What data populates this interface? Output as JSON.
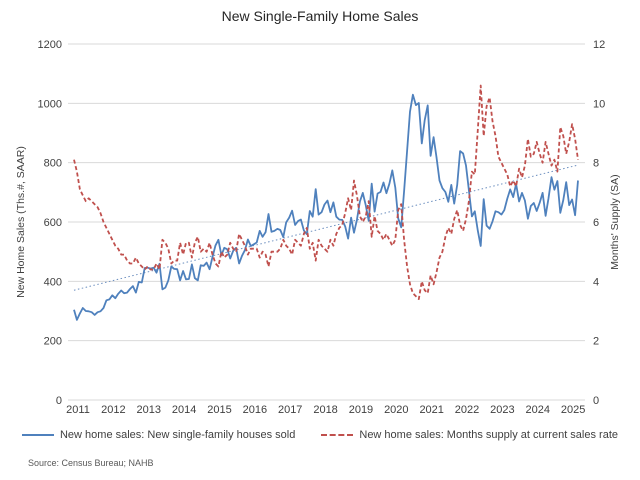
{
  "chart_data": {
    "type": "line",
    "title": "New Single-Family Home Sales",
    "source": "Source: Census Bureau; NAHB",
    "grid": "horizontal",
    "legend_position": "bottom",
    "frequency": "monthly",
    "start_period": "2011-01",
    "x_tick_labels": [
      "2011",
      "2012",
      "2013",
      "2014",
      "2015",
      "2016",
      "2017",
      "2018",
      "2019",
      "2020",
      "2021",
      "2022",
      "2023",
      "2024",
      "2025"
    ],
    "y_left": {
      "label": "New Home Sales (Ths.#, SAAR)",
      "ticks": [
        0,
        200,
        400,
        600,
        800,
        1000,
        1200
      ],
      "lim": [
        0,
        1200
      ]
    },
    "y_right": {
      "label": "Months' Supply (SA)",
      "ticks": [
        0,
        2,
        4,
        6,
        8,
        10,
        12
      ],
      "lim": [
        0,
        12
      ]
    },
    "colors": {
      "sales": "#4f81bd",
      "supply": "#c0504d",
      "gridline": "#d9d9d9",
      "trendline": "#6b8ebf"
    },
    "series": [
      {
        "name": "New home sales: New single-family houses sold",
        "axis": "left",
        "color": "#4f81bd",
        "style": "solid",
        "values": [
          304,
          270,
          292,
          310,
          300,
          299,
          296,
          287,
          296,
          299,
          310,
          336,
          339,
          353,
          343,
          358,
          369,
          360,
          362,
          374,
          384,
          362,
          398,
          396,
          445,
          446,
          443,
          446,
          429,
          459,
          373,
          379,
          403,
          450,
          442,
          441,
          403,
          435,
          407,
          408,
          457,
          411,
          403,
          454,
          452,
          463,
          441,
          482,
          521,
          540,
          488,
          513,
          508,
          477,
          503,
          513,
          460,
          486,
          505,
          541,
          519,
          525,
          531,
          570,
          550,
          566,
          627,
          567,
          570,
          577,
          573,
          549,
          599,
          615,
          638,
          590,
          603,
          608,
          571,
          559,
          637,
          618,
          711,
          625,
          633,
          659,
          672,
          633,
          666,
          618,
          608,
          607,
          585,
          544,
          615,
          564,
          607,
          669,
          698,
          656,
          604,
          729,
          635,
          696,
          701,
          733,
          697,
          729,
          774,
          716,
          612,
          582,
          704,
          840,
          972,
          1029,
          994,
          1001,
          865,
          943,
          993,
          823,
          886,
          818,
          740,
          714,
          701,
          668,
          725,
          662,
          725,
          839,
          831,
          790,
          707,
          619,
          636,
          571,
          519,
          677,
          588,
          577,
          602,
          636,
          633,
          625,
          640,
          679,
          710,
          684,
          728,
          669,
          698,
          672,
          611,
          654,
          664,
          637,
          665,
          698,
          621,
          680,
          751,
          709,
          738,
          631,
          674,
          734,
          657,
          676,
          623,
          740
        ]
      },
      {
        "name": "New home sales: Months supply at current sales rate",
        "axis": "right",
        "color": "#c0504d",
        "style": "dashed",
        "values": [
          8.1,
          7.7,
          7.1,
          6.9,
          6.7,
          6.8,
          6.7,
          6.6,
          6.5,
          6.3,
          6.0,
          5.8,
          5.6,
          5.4,
          5.2,
          5.1,
          4.9,
          4.9,
          4.7,
          4.6,
          4.6,
          4.8,
          4.6,
          4.5,
          4.4,
          4.5,
          4.4,
          4.4,
          4.6,
          4.4,
          5.4,
          5.3,
          5.1,
          4.6,
          4.7,
          4.7,
          5.3,
          4.9,
          5.3,
          5.3,
          4.8,
          5.3,
          5.5,
          5.0,
          5.1,
          5.0,
          5.3,
          4.9,
          4.6,
          4.5,
          5.0,
          4.8,
          4.9,
          5.3,
          5.1,
          5.0,
          5.6,
          5.4,
          5.2,
          4.9,
          5.1,
          5.1,
          5.1,
          4.8,
          5.0,
          4.9,
          4.5,
          5.0,
          5.0,
          5.0,
          5.1,
          5.4,
          5.2,
          5.1,
          4.9,
          5.4,
          5.3,
          5.2,
          5.6,
          5.8,
          5.1,
          5.3,
          4.7,
          5.4,
          5.2,
          5.1,
          5.0,
          5.4,
          5.2,
          5.6,
          5.8,
          5.9,
          6.3,
          6.8,
          6.4,
          7.4,
          6.9,
          6.2,
          6.0,
          6.2,
          6.7,
          5.5,
          6.2,
          5.7,
          5.6,
          5.4,
          5.6,
          5.4,
          5.2,
          5.4,
          6.4,
          6.6,
          5.4,
          4.5,
          3.9,
          3.6,
          3.5,
          3.4,
          4.0,
          3.7,
          3.6,
          4.2,
          3.9,
          4.3,
          4.8,
          5.0,
          5.5,
          5.8,
          5.6,
          6.1,
          6.4,
          5.9,
          5.7,
          6.1,
          6.7,
          7.7,
          7.6,
          9.1,
          10.6,
          8.9,
          9.9,
          10.2,
          9.4,
          8.9,
          8.2,
          8.0,
          7.8,
          7.6,
          7.2,
          7.4,
          7.2,
          7.8,
          7.5,
          7.9,
          8.8,
          8.2,
          8.3,
          8.7,
          8.3,
          8.0,
          8.7,
          8.3,
          7.9,
          8.1,
          7.7,
          9.2,
          8.9,
          8.3,
          8.7,
          9.3,
          8.8,
          8.1
        ]
      }
    ],
    "trendline": {
      "for_series": "New home sales: New single-family houses sold",
      "style": "dotted",
      "start_value": 370,
      "end_value": 792
    }
  }
}
